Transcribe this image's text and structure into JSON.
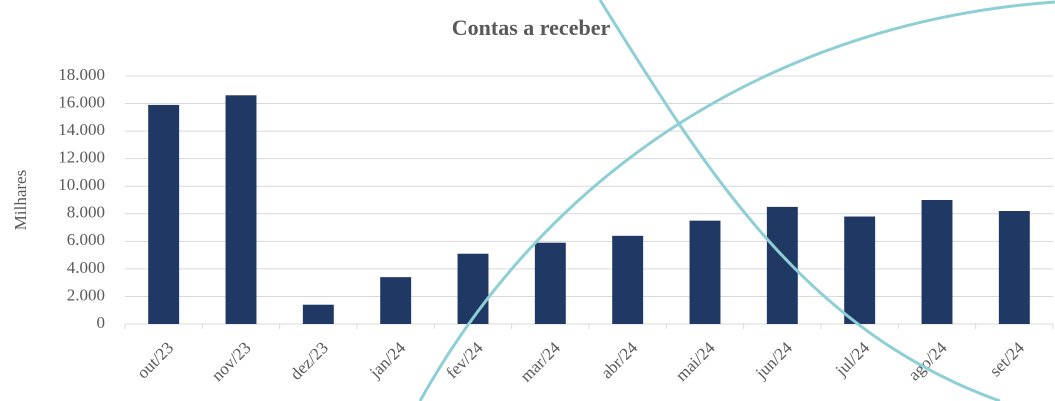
{
  "chart_data": {
    "type": "bar",
    "title": "Contas a receber",
    "y_label": "Milhares",
    "categories": [
      "out/23",
      "nov/23",
      "dez/23",
      "jan/24",
      "fev/24",
      "mar/24",
      "abr/24",
      "mai/24",
      "jun/24",
      "jul/24",
      "ago/24",
      "set/24"
    ],
    "values": [
      15900,
      16600,
      1400,
      3400,
      5100,
      5900,
      6400,
      7500,
      8500,
      7800,
      9000,
      8200
    ],
    "color": "#1f3864",
    "ylim": [
      0,
      18000
    ],
    "yticks": [
      0,
      {
        "value": 2000,
        "label": "2.000"
      },
      {
        "value": 4000,
        "label": "4.000"
      },
      {
        "value": 6000,
        "label": "6.000"
      },
      {
        "value": 8000,
        "label": "8.000"
      },
      {
        "value": 10000,
        "label": "10.000"
      },
      {
        "value": 12000,
        "label": "12.000"
      },
      {
        "value": 14000,
        "label": "14.000"
      },
      {
        "value": 16000,
        "label": "16.000"
      },
      {
        "value": 18000,
        "label": "18.000"
      }
    ],
    "grid": true
  }
}
